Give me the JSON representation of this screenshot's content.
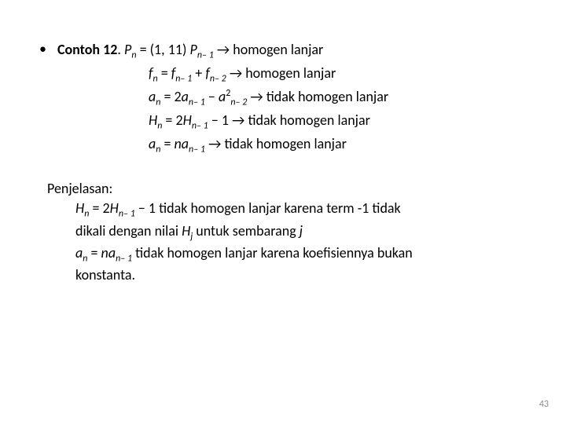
{
  "example": {
    "title_prefix": "Contoh 12",
    "title_suffix": ". ",
    "arrow": "→",
    "lines": {
      "l1": {
        "lhs_var": "P",
        "lhs_sub": "n",
        "eq": " = (1, 11) ",
        "rhs_var": "P",
        "rhs_sub": "n– 1",
        "result": "homogen lanjar"
      },
      "l2": {
        "lhs_var": "f",
        "lhs_sub": "n",
        "eq": " = ",
        "t1_var": "f",
        "t1_sub": "n– 1",
        "plus": "  +  ",
        "t2_var": "f",
        "t2_sub": "n– 2",
        "result": "homogen lanjar"
      },
      "l3": {
        "lhs_var": "a",
        "lhs_sub": "n",
        "eq": " = 2",
        "t1_var": "a",
        "t1_sub": "n– 1",
        "minus": " − ",
        "t2_var": "a",
        "t2_sup": "2",
        "t2_sub": "n– 2",
        "result": "tidak homogen lanjar"
      },
      "l4": {
        "lhs_var": "H",
        "lhs_sub": "n",
        "eq": " = 2",
        "t1_var": "H",
        "t1_sub": "n– 1",
        "minus": " − 1",
        "result": "tidak homogen lanjar"
      },
      "l5": {
        "lhs_var": "a",
        "lhs_sub": "n",
        "eq": " = ",
        "coef_var": "n",
        "t1_var": "a",
        "t1_sub": "n– 1",
        "result": "tidak homogen lanjar"
      }
    }
  },
  "explanation": {
    "heading": "Penjelasan:",
    "p1": {
      "lhs_var": "H",
      "lhs_sub": "n",
      "eq": " = 2",
      "t1_var": "H",
      "t1_sub": "n– 1",
      "minus": " − 1  tidak homogen lanjar karena term -1 tidak",
      "line2a": "dikali dengan nilai ",
      "h_var": "H",
      "h_sub": "j",
      "line2b": "  untuk sembarang ",
      "j_var": "j"
    },
    "p2": {
      "lhs_var": "a",
      "lhs_sub": "n",
      "eq": " = ",
      "coef_var": "n",
      "t1_var": "a",
      "t1_sub": "n– 1",
      "text1": "   tidak homogen lanjar karena koefisiennya bukan",
      "text2": "konstanta."
    }
  },
  "page_number": "43"
}
